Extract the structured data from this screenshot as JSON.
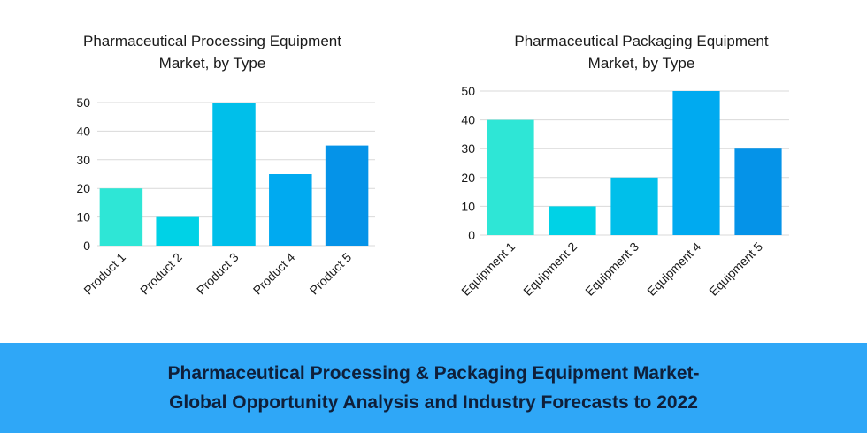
{
  "chart_data": [
    {
      "type": "bar",
      "title_lines": [
        "Pharmaceutical Processing Equipment",
        "Market, by Type"
      ],
      "categories": [
        "Product 1",
        "Product 2",
        "Product 3",
        "Product 4",
        "Product 5"
      ],
      "values": [
        20,
        10,
        50,
        25,
        35
      ],
      "colors": [
        "#2ee6d6",
        "#00d2e6",
        "#00bfea",
        "#00aaf0",
        "#0593e8"
      ],
      "ylim": [
        0,
        50
      ],
      "yticks": [
        0,
        10,
        20,
        30,
        40,
        50
      ],
      "grid": true,
      "xlabel": "",
      "ylabel": ""
    },
    {
      "type": "bar",
      "title_lines": [
        "Pharmaceutical Packaging Equipment",
        "Market, by Type"
      ],
      "categories": [
        "Equipment 1",
        "Equipment 2",
        "Equipment 3",
        "Equipment 4",
        "Equipment 5"
      ],
      "values": [
        40,
        10,
        20,
        50,
        30
      ],
      "colors": [
        "#2ee6d6",
        "#00d2e6",
        "#00bfea",
        "#00aaf0",
        "#0593e8"
      ],
      "ylim": [
        0,
        50
      ],
      "yticks": [
        0,
        10,
        20,
        30,
        40,
        50
      ],
      "grid": true,
      "xlabel": "",
      "ylabel": ""
    }
  ],
  "banner": {
    "line1": "Pharmaceutical Processing & Packaging Equipment Market-",
    "line2": "Global Opportunity Analysis and Industry Forecasts to 2022",
    "background": "#2fa7f7"
  }
}
